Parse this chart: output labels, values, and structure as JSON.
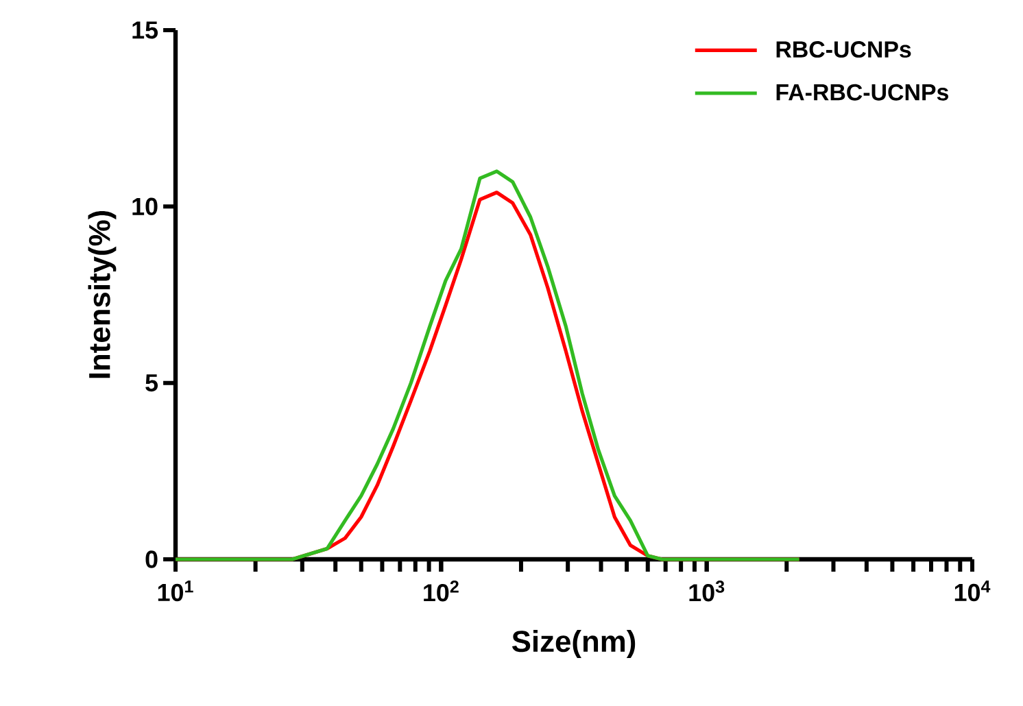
{
  "chart_data": {
    "type": "line",
    "xlabel": "Size(nm)",
    "ylabel": "Intensity(%)",
    "log": "x",
    "x": [
      10,
      27.5,
      37.2,
      43.5,
      50,
      57.5,
      66,
      77,
      90.6,
      104,
      119,
      140,
      162,
      186,
      217,
      252,
      295,
      340,
      391,
      450,
      516,
      600,
      678,
      2230
    ],
    "series": [
      {
        "name": "RBC-UCNPs",
        "color": "#ff0000",
        "values": [
          0,
          0,
          0.3,
          0.6,
          1.2,
          2.1,
          3.2,
          4.5,
          5.9,
          7.2,
          8.5,
          10.2,
          10.4,
          10.1,
          9.2,
          7.7,
          5.9,
          4.2,
          2.7,
          1.2,
          0.4,
          0.1,
          0,
          0
        ]
      },
      {
        "name": "FA-RBC-UCNPs",
        "color": "#33bb22",
        "values": [
          0,
          0,
          0.3,
          1.1,
          1.8,
          2.7,
          3.7,
          5.0,
          6.6,
          7.9,
          8.8,
          10.8,
          11.0,
          10.7,
          9.7,
          8.3,
          6.6,
          4.7,
          3.1,
          1.8,
          1.1,
          0.1,
          0,
          0
        ]
      }
    ],
    "xlim": [
      10,
      10000
    ],
    "xticks": [
      {
        "value": 10,
        "label": "10$^{1}$"
      },
      {
        "value": 100,
        "label": "10$^{2}$"
      },
      {
        "value": 1000,
        "label": "10$^{3}$"
      },
      {
        "value": 10000,
        "label": "10$^{4}$"
      }
    ],
    "ylim": [
      0,
      15
    ],
    "yticks": [
      0,
      5,
      10,
      15
    ],
    "grid": false,
    "legend": "top right",
    "marker": "none",
    "line_style": "solid"
  }
}
